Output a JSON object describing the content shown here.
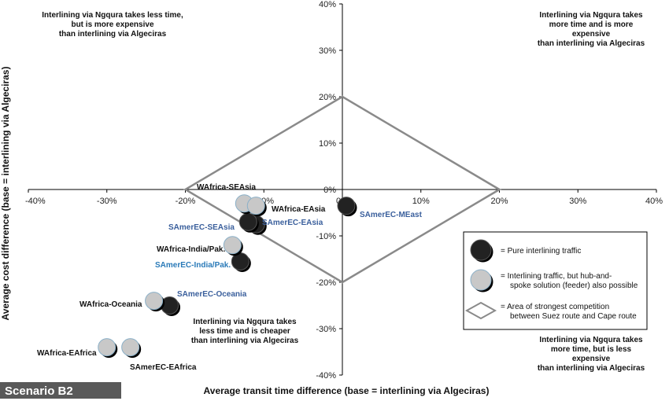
{
  "chart_data": {
    "type": "scatter",
    "xlabel": "Average transit time difference (base = interlining via Algeciras)",
    "ylabel": "Average cost difference  (base = interlining via Algeciras)",
    "xlim": [
      -40,
      40
    ],
    "ylim": [
      -40,
      40
    ],
    "x_ticks": [
      "-40%",
      "-30%",
      "-20%",
      "-10%",
      "0%",
      "10%",
      "20%",
      "30%",
      "40%"
    ],
    "y_ticks": [
      "40%",
      "30%",
      "20%",
      "10%",
      "0%",
      "-10%",
      "-20%",
      "-30%",
      "-40%"
    ],
    "series": [
      {
        "name": "= Pure interlining traffic",
        "color": "#222222",
        "points": [
          {
            "label": "SAmerEC-MEast",
            "x": 0.5,
            "y": -3.5,
            "label_color": "#3a5f9c"
          },
          {
            "label": "SAmerEC-EAsia",
            "x": -11,
            "y": -7.5,
            "label_color": "#3a5f9c"
          },
          {
            "label": "SAmerEC-SEAsia",
            "x": -12,
            "y": -7,
            "label_color": "#3a5f9c"
          },
          {
            "label": "SAmerEC-India/Pak.",
            "x": -13,
            "y": -15.5,
            "label_color": "#2a7ab8"
          },
          {
            "label": "WAfrica-Oceania",
            "x": -22,
            "y": -25,
            "label_color": "#111111"
          }
        ]
      },
      {
        "name": "= Interlining traffic, but hub-and-spoke solution (feeder) also possible",
        "color": "#c8c8c8",
        "points": [
          {
            "label": "WAfrica-SEAsia",
            "x": -12.5,
            "y": -3,
            "label_color": "#111111"
          },
          {
            "label": "WAfrica-EAsia",
            "x": -11,
            "y": -3.5,
            "label_color": "#111111"
          },
          {
            "label": "WAfrica-India/Pak.",
            "x": -14,
            "y": -12,
            "label_color": "#111111"
          },
          {
            "label": "SAmerEC-Oceania",
            "x": -24,
            "y": -24,
            "label_color": "#3a5f9c"
          },
          {
            "label": "WAfrica-EAfrica",
            "x": -30,
            "y": -34,
            "label_color": "#111111"
          },
          {
            "label": "SAmerEC-EAfrica",
            "x": -27,
            "y": -34,
            "label_color": "#111111"
          }
        ]
      }
    ],
    "competition_area": {
      "name": "= Area of strongest competition between Suez route and  Cape route",
      "vertices": [
        [
          0,
          20
        ],
        [
          20,
          0
        ],
        [
          0,
          -20
        ],
        [
          -20,
          0
        ]
      ]
    },
    "quadrant_notes": {
      "top_left": [
        "Interlining via Ngqura takes less time,",
        "but is more expensive",
        "than interlining via Algeciras"
      ],
      "top_right": [
        "Interlining via Ngqura takes",
        "more time and is more",
        "expensive",
        "than interlining via Algeciras"
      ],
      "bottom_center": [
        "Interlining via Ngqura takes",
        "less time and is cheaper",
        "than interlining via Algeciras"
      ],
      "bottom_right": [
        "Interlining via Ngqura takes",
        "more time, but is less",
        "expensive",
        "than interlining via Algeciras"
      ]
    },
    "legend": {
      "placement": "bottom-right",
      "entries": [
        {
          "symbol": "dark-circle",
          "lines": [
            "= Pure interlining traffic"
          ]
        },
        {
          "symbol": "light-circle",
          "lines": [
            "= Interlining traffic, but hub-and-",
            "spoke solution (feeder) also possible"
          ]
        },
        {
          "symbol": "diamond",
          "lines": [
            "= Area of strongest competition",
            "between Suez route and  Cape route"
          ]
        }
      ]
    },
    "grid": false
  },
  "scenario_label": "Scenario B2"
}
